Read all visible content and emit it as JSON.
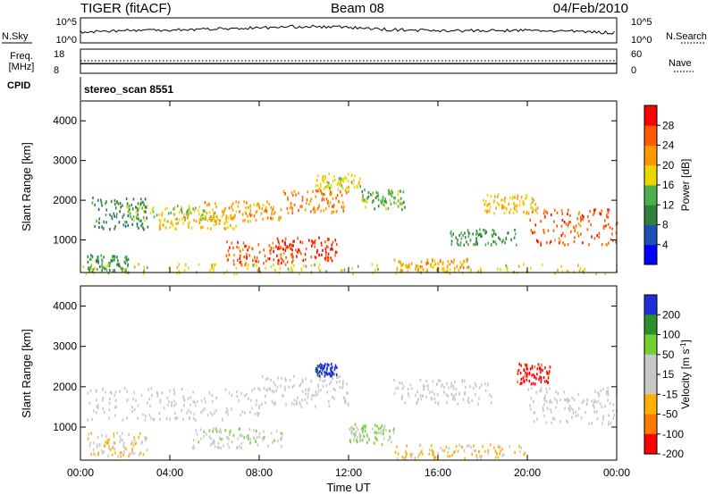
{
  "header": {
    "title": "TIGER (fitACF)",
    "beam": "Beam 08",
    "date": "04/Feb/2010"
  },
  "noise_panel": {
    "left_label": "N.Sky",
    "right_label": "N.Search",
    "left_ticks": [
      "10^5",
      "10^0"
    ],
    "right_ticks": [
      "10^5",
      "10^0"
    ]
  },
  "freq_panel": {
    "left_label_line1": "Freq.",
    "left_label_line2": "[MHz]",
    "left_ticks": [
      "18",
      "8"
    ],
    "right_label": "Nave",
    "right_ticks": [
      "60",
      "0"
    ]
  },
  "cpid": {
    "label": "CPID",
    "value": "stereo_scan 8551"
  },
  "x_axis": {
    "label": "Time UT",
    "tick_labels": [
      "00:00",
      "04:00",
      "08:00",
      "12:00",
      "16:00",
      "20:00",
      "00:00"
    ],
    "range_hours": [
      0,
      24
    ]
  },
  "colors": {
    "power_scale": [
      "#0000ff",
      "#1e4fb4",
      "#2f7f3f",
      "#4caf50",
      "#e8d800",
      "#ff9900",
      "#ff5a00",
      "#ff0000"
    ],
    "velocity_scale": [
      "#1f2fd8",
      "#2e8f2e",
      "#72d12e",
      "#c8c8c8",
      "#c8c8c8",
      "#ffb000",
      "#ff7a00",
      "#ff0000"
    ],
    "velocity_top": "#1f2fd8",
    "power_top": "#ff0000"
  },
  "chart_data": [
    {
      "type": "heatmap",
      "name": "power",
      "ylabel": "Slant Range [km]",
      "ylim": [
        180,
        4500
      ],
      "y_ticks": [
        1000,
        2000,
        3000,
        4000
      ],
      "colorbar_label": "Power [dB]",
      "colorbar_ticks": [
        "4",
        "8",
        "12",
        "16",
        "20",
        "24",
        "28"
      ],
      "colorbar_range": [
        0,
        32
      ],
      "bands": [
        {
          "t0": 0.3,
          "t1": 2.2,
          "r0": 200,
          "r1": 650,
          "v": 12
        },
        {
          "t0": 0.5,
          "t1": 3.0,
          "r0": 1300,
          "r1": 2100,
          "v": 10
        },
        {
          "t0": 2.0,
          "t1": 6.0,
          "r0": 1500,
          "r1": 1900,
          "v": 16
        },
        {
          "t0": 3.5,
          "t1": 7.0,
          "r0": 1300,
          "r1": 1700,
          "v": 20
        },
        {
          "t0": 5.5,
          "t1": 9.0,
          "r0": 1500,
          "r1": 2000,
          "v": 22
        },
        {
          "t0": 6.5,
          "t1": 9.5,
          "r0": 400,
          "r1": 1000,
          "v": 26
        },
        {
          "t0": 8.5,
          "t1": 11.5,
          "r0": 500,
          "r1": 1100,
          "v": 28
        },
        {
          "t0": 9.0,
          "t1": 12.0,
          "r0": 1700,
          "r1": 2300,
          "v": 24
        },
        {
          "t0": 10.5,
          "t1": 12.5,
          "r0": 2300,
          "r1": 2700,
          "v": 18
        },
        {
          "t0": 12.5,
          "t1": 14.5,
          "r0": 1800,
          "r1": 2300,
          "v": 14
        },
        {
          "t0": 14.0,
          "t1": 17.5,
          "r0": 250,
          "r1": 550,
          "v": 22
        },
        {
          "t0": 16.5,
          "t1": 19.5,
          "r0": 900,
          "r1": 1300,
          "v": 12
        },
        {
          "t0": 18.0,
          "t1": 20.5,
          "r0": 1700,
          "r1": 2200,
          "v": 20
        },
        {
          "t0": 20.0,
          "t1": 24.0,
          "r0": 900,
          "r1": 1800,
          "v": 26
        },
        {
          "t0": 0.0,
          "t1": 24.0,
          "r0": 180,
          "r1": 420,
          "v": 18
        }
      ]
    },
    {
      "type": "heatmap",
      "name": "velocity",
      "ylabel": "Slant Range [km]",
      "ylim": [
        180,
        4500
      ],
      "y_ticks": [
        1000,
        2000,
        3000,
        4000
      ],
      "colorbar_label": "Velocity [m s^-1]",
      "colorbar_ticks": [
        "200",
        "100",
        "50",
        "15",
        "-15",
        "-50",
        "-100",
        "-200"
      ],
      "colorbar_range": [
        -250,
        250
      ],
      "bands": [
        {
          "t0": 0.3,
          "t1": 8.0,
          "r0": 1200,
          "r1": 2000,
          "v": 0
        },
        {
          "t0": 0.3,
          "t1": 3.0,
          "r0": 300,
          "r1": 900,
          "v": -60
        },
        {
          "t0": 5.0,
          "t1": 9.0,
          "r0": 500,
          "r1": 1000,
          "v": 40
        },
        {
          "t0": 8.0,
          "t1": 12.0,
          "r0": 1500,
          "r1": 2300,
          "v": 0
        },
        {
          "t0": 10.5,
          "t1": 11.5,
          "r0": 2300,
          "r1": 2600,
          "v": 220
        },
        {
          "t0": 12.0,
          "t1": 14.0,
          "r0": 600,
          "r1": 1100,
          "v": 60
        },
        {
          "t0": 14.0,
          "t1": 18.5,
          "r0": 1600,
          "r1": 2200,
          "v": 0
        },
        {
          "t0": 14.0,
          "t1": 20.0,
          "r0": 250,
          "r1": 600,
          "v": -70
        },
        {
          "t0": 19.5,
          "t1": 21.0,
          "r0": 2100,
          "r1": 2600,
          "v": -220
        },
        {
          "t0": 20.0,
          "t1": 24.0,
          "r0": 1100,
          "r1": 2000,
          "v": 0
        }
      ]
    }
  ],
  "noise_series": {
    "type": "line",
    "name": "N.Sky",
    "x": [
      0,
      2,
      4,
      6,
      8,
      10,
      12,
      14,
      16,
      18,
      20,
      22,
      24
    ],
    "y_log10": [
      2.2,
      2.5,
      2.6,
      2.8,
      3.0,
      3.3,
      3.1,
      2.6,
      2.5,
      2.4,
      2.5,
      2.3,
      2.0
    ],
    "ylim_log10": [
      0,
      5
    ]
  },
  "freq_series": {
    "type": "line",
    "name": "Freq.",
    "x": [
      0,
      24
    ],
    "y": [
      12,
      12
    ],
    "ylim": [
      8,
      18
    ]
  }
}
